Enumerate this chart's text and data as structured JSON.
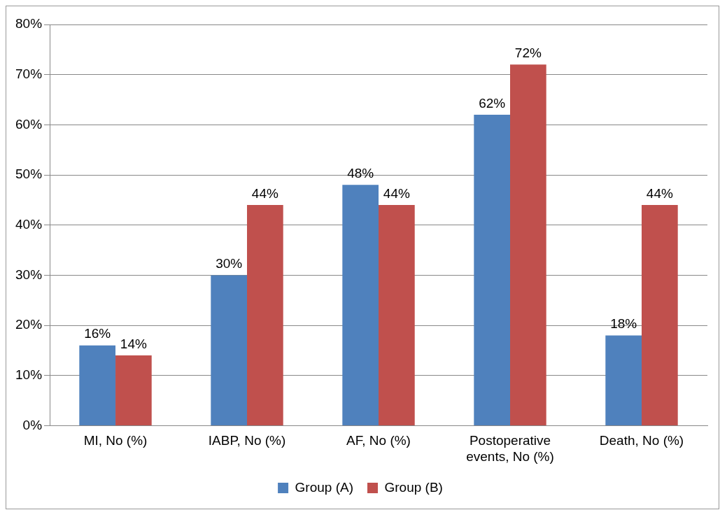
{
  "chart_data": {
    "type": "bar",
    "categories": [
      "MI, No (%)",
      "IABP, No (%)",
      "AF, No (%)",
      "Postoperative events, No (%)",
      "Death, No (%)"
    ],
    "series": [
      {
        "name": "Group (A)",
        "color": "#4f81bd",
        "values": [
          16,
          30,
          48,
          62,
          18
        ],
        "value_labels": [
          "16%",
          "30%",
          "48%",
          "62%",
          "18%"
        ]
      },
      {
        "name": "Group (B)",
        "color": "#c0504d",
        "values": [
          14,
          44,
          44,
          72,
          44
        ],
        "value_labels": [
          "14%",
          "44%",
          "44%",
          "72%",
          "44%"
        ]
      }
    ],
    "ylim": [
      0,
      80
    ],
    "yticks": [
      {
        "value": 0,
        "label": "0%"
      },
      {
        "value": 10,
        "label": "10%"
      },
      {
        "value": 20,
        "label": "20%"
      },
      {
        "value": 30,
        "label": "30%"
      },
      {
        "value": 40,
        "label": "40%"
      },
      {
        "value": 50,
        "label": "50%"
      },
      {
        "value": 60,
        "label": "60%"
      },
      {
        "value": 70,
        "label": "70%"
      },
      {
        "value": 80,
        "label": "80%"
      }
    ],
    "grid": "y",
    "legend": "bottom"
  }
}
